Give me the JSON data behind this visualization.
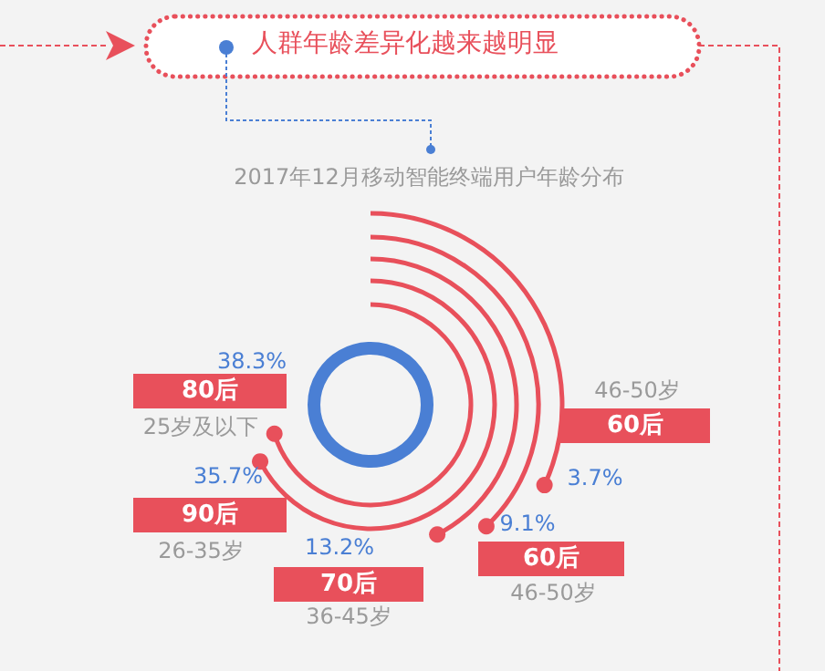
{
  "chart_data": {
    "type": "other",
    "title": "人群年龄差异化越来越明显",
    "subtitle": "2017年12月移动智能终端用户年龄分布",
    "categories": [
      "80后",
      "90后",
      "70后",
      "60后",
      "60后"
    ],
    "values": [
      38.3,
      35.7,
      13.2,
      9.1,
      3.7
    ],
    "value_labels": [
      "38.3%",
      "35.7%",
      "13.2%",
      "9.1%",
      "3.7%"
    ],
    "annotations": [
      "25岁及以下",
      "26-35岁",
      "36-45岁",
      "46-50岁",
      "46-50岁"
    ],
    "color": "#e8505b"
  }
}
